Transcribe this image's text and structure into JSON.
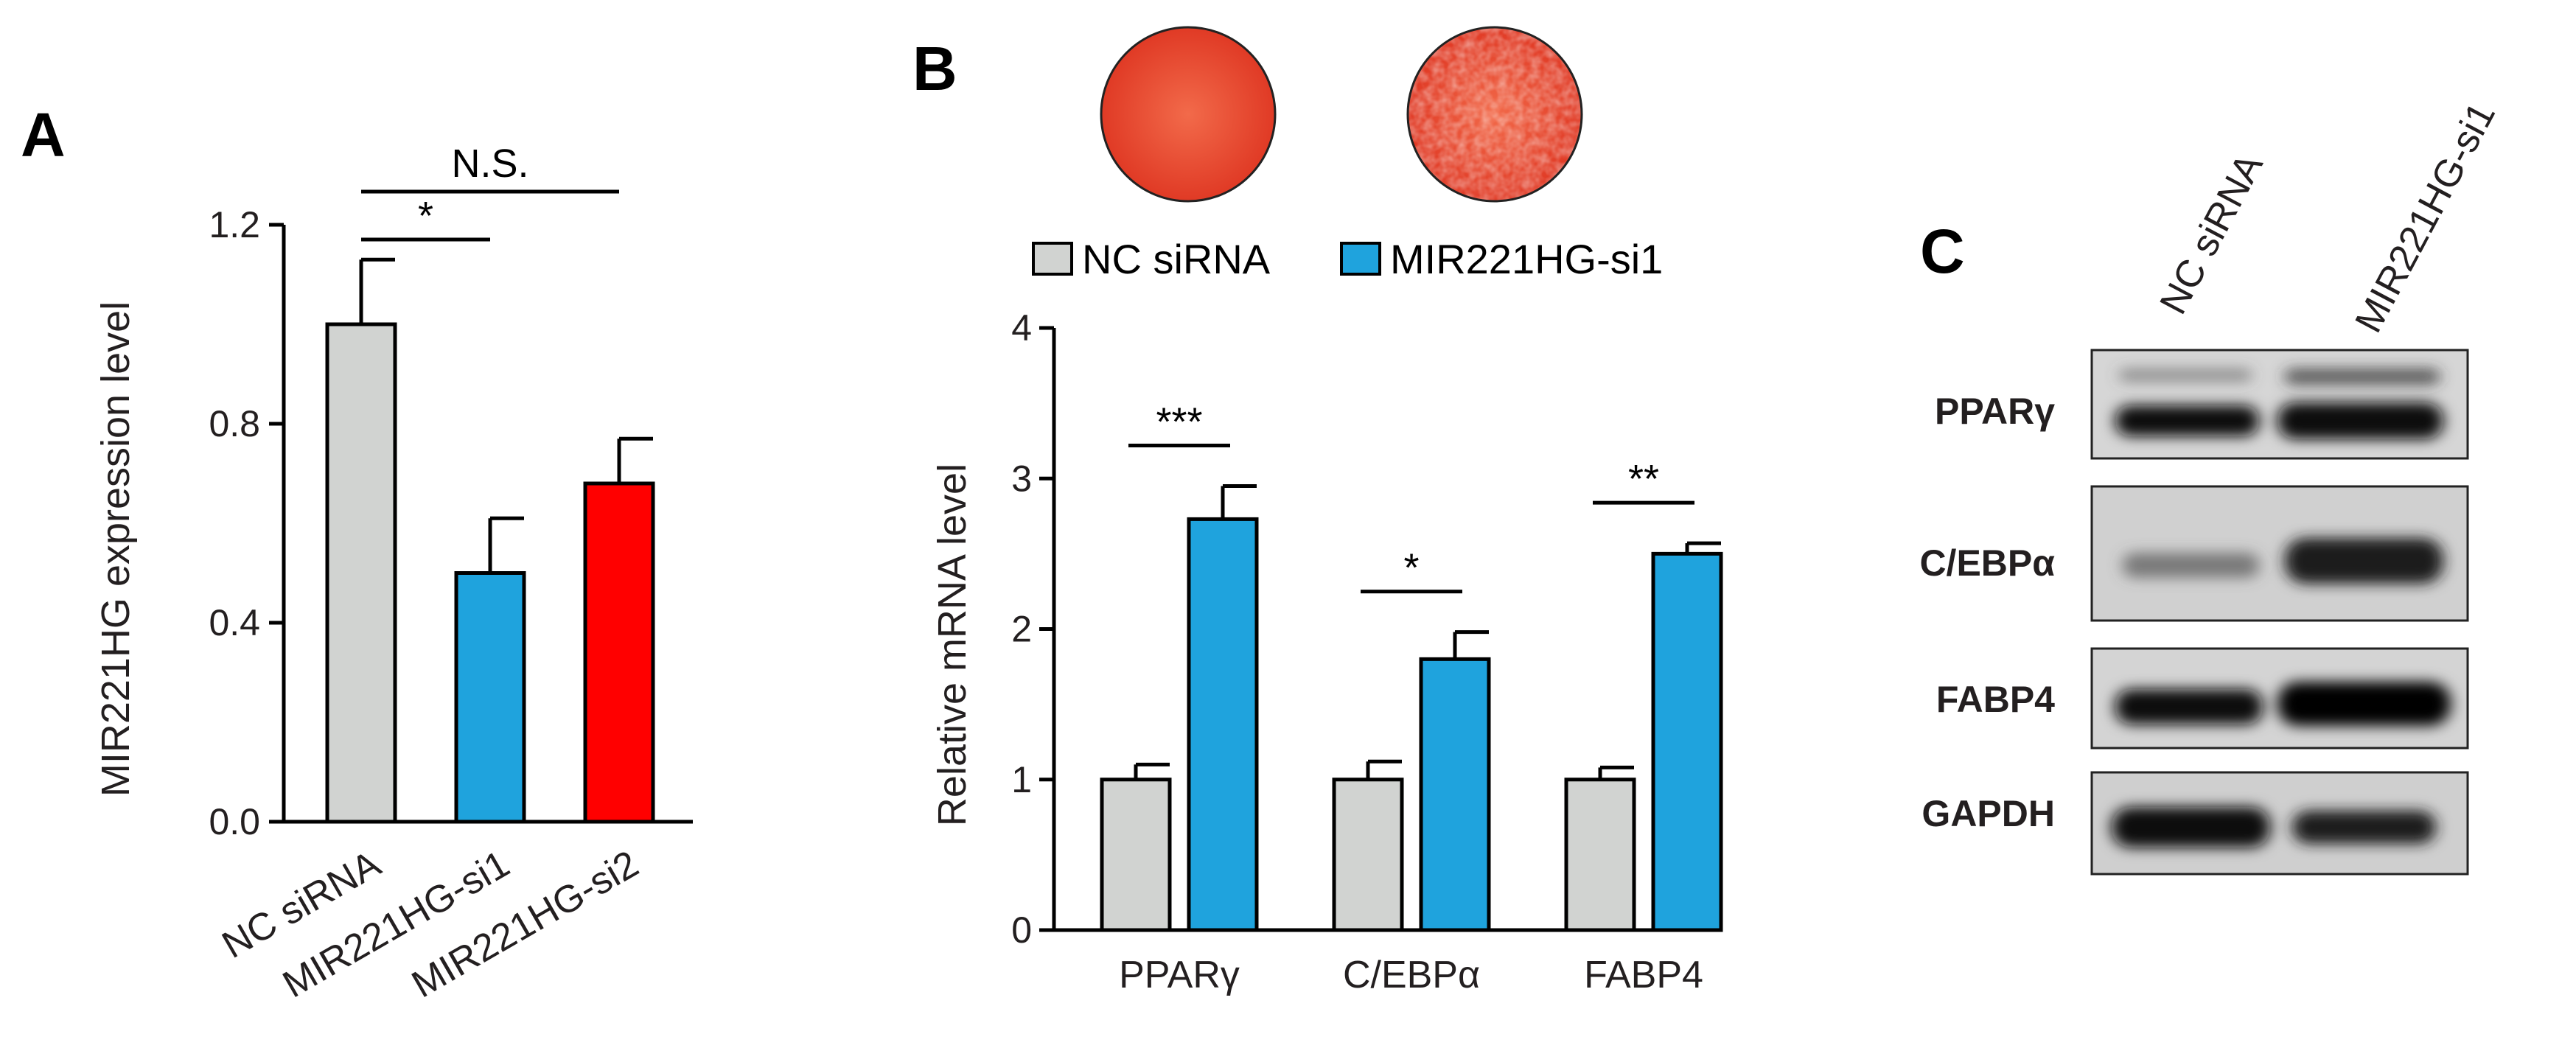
{
  "panels": {
    "a": "A",
    "b": "B",
    "c": "C"
  },
  "chart_data": [
    {
      "type": "bar",
      "ylabel": "MIR221HG expression level",
      "ylim": [
        0,
        1.2
      ],
      "yticks": [
        "0.0",
        "0.4",
        "0.8",
        "1.2"
      ],
      "categories": [
        "NC siRNA",
        "MIR221HG-si1",
        "MIR221HG-si2"
      ],
      "values": [
        1.0,
        0.5,
        0.68
      ],
      "errors": [
        0.13,
        0.11,
        0.09
      ],
      "colors": [
        "#d1d3d1",
        "#1fa3dd",
        "#ff0000"
      ],
      "significance": [
        {
          "from": 0,
          "to": 1,
          "label": "*"
        },
        {
          "from": 0,
          "to": 2,
          "label": "N.S."
        }
      ]
    },
    {
      "type": "bar",
      "ylabel": "Relative mRNA level",
      "ylim": [
        0,
        4
      ],
      "yticks": [
        "0",
        "1",
        "2",
        "3",
        "4"
      ],
      "categories": [
        "PPARγ",
        "C/EBPα",
        "FABP4"
      ],
      "series": [
        {
          "name": "NC siRNA",
          "values": [
            1.0,
            1.0,
            1.0
          ],
          "errors": [
            0.1,
            0.12,
            0.08
          ],
          "color": "#d1d3d1"
        },
        {
          "name": "MIR221HG-si1",
          "values": [
            2.73,
            1.8,
            2.5
          ],
          "errors": [
            0.22,
            0.18,
            0.07
          ],
          "color": "#1fa3dd"
        }
      ],
      "significance": [
        "***",
        "*",
        "**"
      ],
      "legend_position": "top"
    }
  ],
  "blot": {
    "lanes": [
      "NC siRNA",
      "MIR221HG-si1"
    ],
    "proteins": [
      "PPARγ",
      "C/EBPα",
      "FABP4",
      "GAPDH"
    ]
  },
  "images": {
    "stain_color": "#e8462f"
  }
}
